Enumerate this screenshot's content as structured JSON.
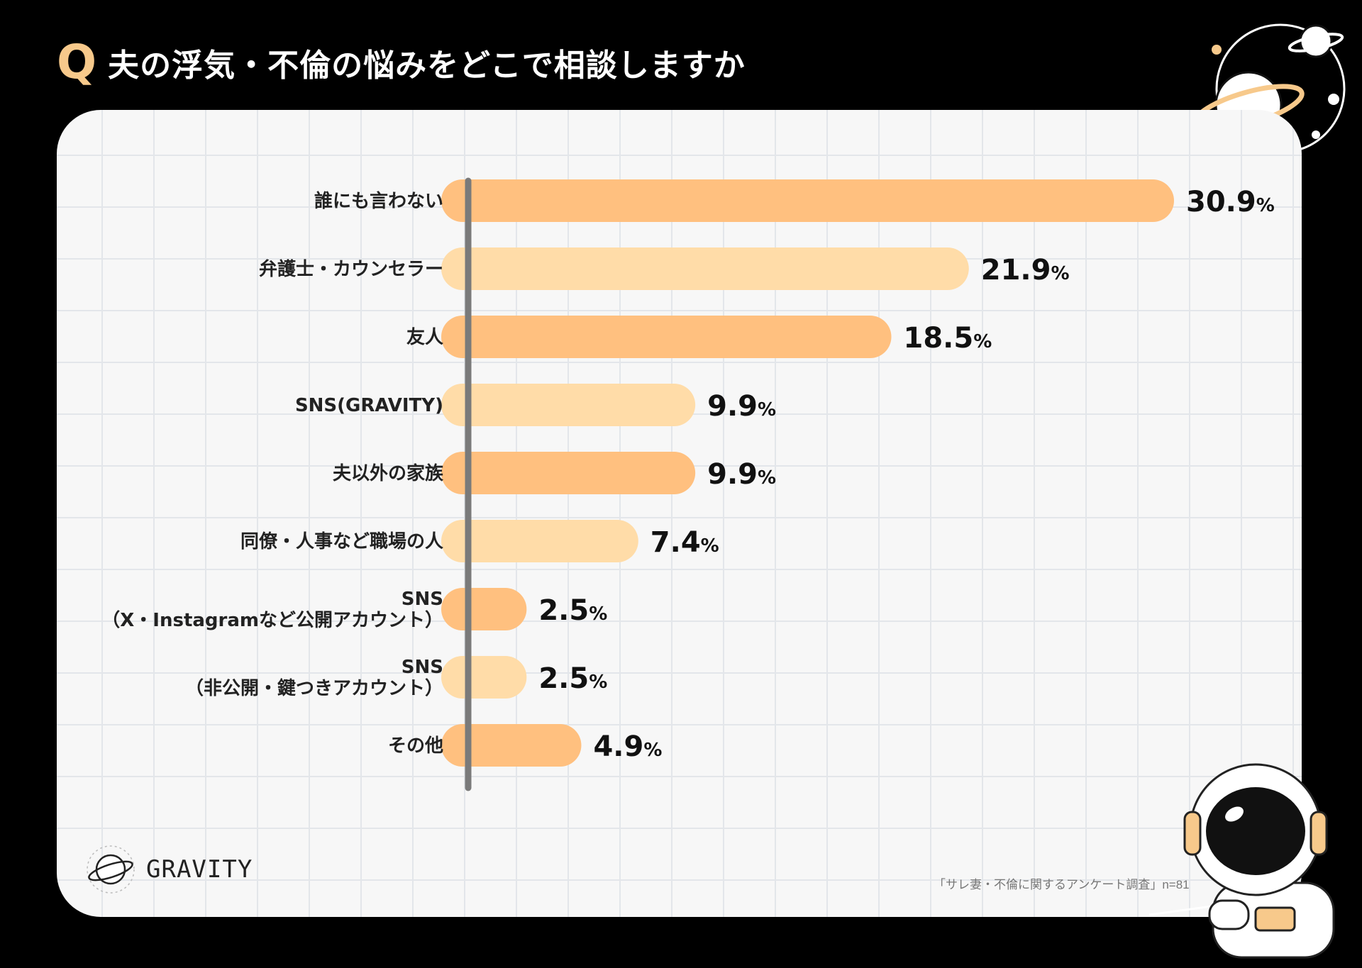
{
  "header": {
    "q_mark": "Q",
    "title": "夫の浮気・不倫の悩みをどこで相談しますか"
  },
  "chart_data": {
    "type": "bar",
    "orientation": "horizontal",
    "title": "夫の浮気・不倫の悩みをどこで相談しますか",
    "categories": [
      [
        "誰にも言わない"
      ],
      [
        "弁護士・カウンセラー"
      ],
      [
        "友人"
      ],
      [
        "SNS(GRAVITY)"
      ],
      [
        "夫以外の家族"
      ],
      [
        "同僚・人事など職場の人"
      ],
      [
        "SNS",
        "（X・Instagramなど公開アカウント）"
      ],
      [
        "SNS",
        "（非公開・鍵つきアカウント）"
      ],
      [
        "その他"
      ]
    ],
    "values": [
      30.9,
      21.9,
      18.5,
      9.9,
      9.9,
      7.4,
      2.5,
      2.5,
      4.9
    ],
    "value_labels": [
      "30.9",
      "21.9",
      "18.5",
      "9.9",
      "9.9",
      "7.4",
      "2.5",
      "2.5",
      "4.9"
    ],
    "unit": "%",
    "xlim": [
      0,
      30.9
    ],
    "colors": [
      "#ffc07f",
      "#ffdca8"
    ],
    "grid": true,
    "legend": "none"
  },
  "logo": {
    "text": "GRAVITY"
  },
  "footer": {
    "source": "「サレ妻・不倫に関するアンケート調査」n=81"
  }
}
